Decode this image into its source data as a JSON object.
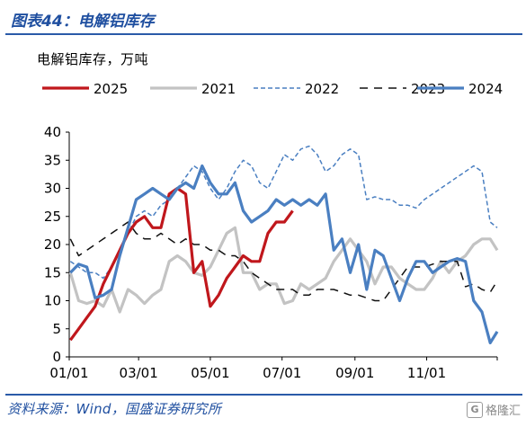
{
  "figure": {
    "title": "图表44：电解铝库存",
    "source": "资料来源：Wind，国盛证券研究所",
    "watermark": "格隆汇"
  },
  "chart_data": {
    "type": "line",
    "subtitle": "电解铝库存，万吨",
    "xlabel": "",
    "ylabel": "",
    "ylim": [
      0,
      40
    ],
    "yticks": [
      0,
      5,
      10,
      15,
      20,
      25,
      30,
      35,
      40
    ],
    "xlim": [
      "01/01",
      "12/31"
    ],
    "xticks": [
      "01/01",
      "03/01",
      "05/01",
      "07/01",
      "09/01",
      "11/01"
    ],
    "grid": false,
    "legend_position": "top",
    "series": [
      {
        "name": "2025",
        "color": "#c0171c",
        "style": "solid",
        "width": 3.2,
        "points": [
          [
            "01/02",
            3
          ],
          [
            "01/09",
            5
          ],
          [
            "01/16",
            7
          ],
          [
            "01/23",
            9
          ],
          [
            "01/30",
            13
          ],
          [
            "02/06",
            16
          ],
          [
            "02/13",
            19
          ],
          [
            "02/20",
            22
          ],
          [
            "02/27",
            24
          ],
          [
            "03/06",
            25
          ],
          [
            "03/13",
            23
          ],
          [
            "03/20",
            23
          ],
          [
            "03/27",
            29
          ],
          [
            "04/03",
            30
          ],
          [
            "04/10",
            29
          ],
          [
            "04/17",
            15
          ],
          [
            "04/24",
            17
          ],
          [
            "05/01",
            9
          ],
          [
            "05/08",
            11
          ],
          [
            "05/15",
            14
          ],
          [
            "05/22",
            16
          ],
          [
            "05/29",
            18
          ],
          [
            "06/05",
            17
          ],
          [
            "06/12",
            17
          ],
          [
            "06/19",
            22
          ],
          [
            "06/26",
            24
          ],
          [
            "07/03",
            24
          ],
          [
            "07/10",
            26
          ]
        ]
      },
      {
        "name": "2021",
        "color": "#c3c3c3",
        "style": "solid",
        "width": 3.2,
        "points": [
          [
            "01/02",
            15
          ],
          [
            "01/09",
            10
          ],
          [
            "01/16",
            9.5
          ],
          [
            "01/23",
            10
          ],
          [
            "01/30",
            9
          ],
          [
            "02/06",
            12
          ],
          [
            "02/13",
            8
          ],
          [
            "02/20",
            12
          ],
          [
            "02/27",
            11
          ],
          [
            "03/06",
            9.5
          ],
          [
            "03/13",
            11
          ],
          [
            "03/20",
            12
          ],
          [
            "03/27",
            17
          ],
          [
            "04/03",
            18
          ],
          [
            "04/10",
            17
          ],
          [
            "04/17",
            15
          ],
          [
            "04/24",
            14.5
          ],
          [
            "05/01",
            16
          ],
          [
            "05/08",
            19
          ],
          [
            "05/15",
            22
          ],
          [
            "05/22",
            23
          ],
          [
            "05/29",
            15
          ],
          [
            "06/05",
            15
          ],
          [
            "06/12",
            12
          ],
          [
            "06/19",
            13
          ],
          [
            "06/26",
            13
          ],
          [
            "07/03",
            9.5
          ],
          [
            "07/10",
            10
          ],
          [
            "07/17",
            13
          ],
          [
            "07/24",
            12
          ],
          [
            "07/31",
            13
          ],
          [
            "08/07",
            14
          ],
          [
            "08/14",
            17
          ],
          [
            "08/21",
            19
          ],
          [
            "08/28",
            21
          ],
          [
            "09/04",
            19
          ],
          [
            "09/11",
            17
          ],
          [
            "09/18",
            13
          ],
          [
            "09/25",
            16
          ],
          [
            "10/02",
            16
          ],
          [
            "10/09",
            14
          ],
          [
            "10/16",
            13
          ],
          [
            "10/23",
            12
          ],
          [
            "10/30",
            12
          ],
          [
            "11/06",
            14
          ],
          [
            "11/13",
            17
          ],
          [
            "11/20",
            15
          ],
          [
            "11/27",
            17
          ],
          [
            "12/04",
            18
          ],
          [
            "12/11",
            20
          ],
          [
            "12/18",
            21
          ],
          [
            "12/25",
            21
          ],
          [
            "12/31",
            19
          ]
        ]
      },
      {
        "name": "2022",
        "color": "#4a7fc1",
        "style": "dashed",
        "width": 1.5,
        "points": [
          [
            "01/02",
            17
          ],
          [
            "01/09",
            16
          ],
          [
            "01/16",
            15
          ],
          [
            "01/23",
            15
          ],
          [
            "01/30",
            14
          ],
          [
            "02/06",
            16
          ],
          [
            "02/13",
            19
          ],
          [
            "02/20",
            22
          ],
          [
            "02/27",
            25
          ],
          [
            "03/06",
            26
          ],
          [
            "03/13",
            25
          ],
          [
            "03/20",
            27
          ],
          [
            "03/27",
            28
          ],
          [
            "04/03",
            30
          ],
          [
            "04/10",
            32
          ],
          [
            "04/17",
            34
          ],
          [
            "04/24",
            33
          ],
          [
            "05/01",
            30
          ],
          [
            "05/08",
            28
          ],
          [
            "05/15",
            30
          ],
          [
            "05/22",
            33
          ],
          [
            "05/29",
            35
          ],
          [
            "06/05",
            34
          ],
          [
            "06/12",
            31
          ],
          [
            "06/19",
            30
          ],
          [
            "06/26",
            33
          ],
          [
            "07/03",
            36
          ],
          [
            "07/10",
            35
          ],
          [
            "07/17",
            37
          ],
          [
            "07/24",
            37.5
          ],
          [
            "07/31",
            36
          ],
          [
            "08/07",
            33
          ],
          [
            "08/14",
            34
          ],
          [
            "08/21",
            36
          ],
          [
            "08/28",
            37
          ],
          [
            "09/04",
            36
          ],
          [
            "09/11",
            28
          ],
          [
            "09/18",
            28.5
          ],
          [
            "09/25",
            28
          ],
          [
            "10/02",
            28
          ],
          [
            "10/09",
            27
          ],
          [
            "10/16",
            27
          ],
          [
            "10/23",
            26.5
          ],
          [
            "10/30",
            28
          ],
          [
            "11/06",
            29
          ],
          [
            "11/13",
            30
          ],
          [
            "11/20",
            31
          ],
          [
            "11/27",
            32
          ],
          [
            "12/04",
            33
          ],
          [
            "12/11",
            34
          ],
          [
            "12/18",
            33
          ],
          [
            "12/25",
            24
          ],
          [
            "12/31",
            23
          ]
        ]
      },
      {
        "name": "2023",
        "color": "#111111",
        "style": "longdash",
        "width": 1.5,
        "points": [
          [
            "01/02",
            21
          ],
          [
            "01/09",
            18
          ],
          [
            "01/16",
            19
          ],
          [
            "01/23",
            20
          ],
          [
            "01/30",
            21
          ],
          [
            "02/06",
            22
          ],
          [
            "02/13",
            23
          ],
          [
            "02/20",
            24
          ],
          [
            "02/27",
            22
          ],
          [
            "03/06",
            21
          ],
          [
            "03/13",
            21
          ],
          [
            "03/20",
            22
          ],
          [
            "03/27",
            21
          ],
          [
            "04/03",
            20
          ],
          [
            "04/10",
            21
          ],
          [
            "04/17",
            20
          ],
          [
            "04/24",
            20
          ],
          [
            "05/01",
            19
          ],
          [
            "05/08",
            19
          ],
          [
            "05/15",
            18
          ],
          [
            "05/22",
            18
          ],
          [
            "05/29",
            17
          ],
          [
            "06/05",
            15
          ],
          [
            "06/12",
            14
          ],
          [
            "06/19",
            13
          ],
          [
            "06/26",
            12
          ],
          [
            "07/03",
            12
          ],
          [
            "07/10",
            12
          ],
          [
            "07/17",
            11
          ],
          [
            "07/24",
            11
          ],
          [
            "07/31",
            12
          ],
          [
            "08/07",
            12
          ],
          [
            "08/14",
            12
          ],
          [
            "08/21",
            11.5
          ],
          [
            "08/28",
            11
          ],
          [
            "09/04",
            11
          ],
          [
            "09/11",
            10.5
          ],
          [
            "09/18",
            10
          ],
          [
            "09/25",
            10
          ],
          [
            "10/02",
            12
          ],
          [
            "10/09",
            14
          ],
          [
            "10/16",
            16
          ],
          [
            "10/23",
            16
          ],
          [
            "10/30",
            16
          ],
          [
            "11/06",
            16.5
          ],
          [
            "11/13",
            17
          ],
          [
            "11/20",
            17
          ],
          [
            "11/27",
            17
          ],
          [
            "12/04",
            12.5
          ],
          [
            "12/11",
            13
          ],
          [
            "12/18",
            12
          ],
          [
            "12/25",
            11.5
          ],
          [
            "12/31",
            13.5
          ]
        ]
      },
      {
        "name": "2024",
        "color": "#4a7fc1",
        "style": "solid",
        "width": 3.2,
        "points": [
          [
            "01/02",
            15
          ],
          [
            "01/09",
            16.5
          ],
          [
            "01/16",
            16
          ],
          [
            "01/23",
            10.5
          ],
          [
            "01/30",
            11
          ],
          [
            "02/06",
            12
          ],
          [
            "02/13",
            18
          ],
          [
            "02/20",
            23
          ],
          [
            "02/27",
            28
          ],
          [
            "03/06",
            29
          ],
          [
            "03/13",
            30
          ],
          [
            "03/20",
            29
          ],
          [
            "03/27",
            28
          ],
          [
            "04/03",
            30
          ],
          [
            "04/10",
            31
          ],
          [
            "04/17",
            30
          ],
          [
            "04/24",
            34
          ],
          [
            "05/01",
            31
          ],
          [
            "05/08",
            29
          ],
          [
            "05/15",
            29
          ],
          [
            "05/22",
            31
          ],
          [
            "05/29",
            26
          ],
          [
            "06/05",
            24
          ],
          [
            "06/12",
            25
          ],
          [
            "06/19",
            26
          ],
          [
            "06/26",
            28
          ],
          [
            "07/03",
            27
          ],
          [
            "07/10",
            28
          ],
          [
            "07/17",
            27
          ],
          [
            "07/24",
            28
          ],
          [
            "07/31",
            27
          ],
          [
            "08/07",
            29
          ],
          [
            "08/14",
            19
          ],
          [
            "08/21",
            21
          ],
          [
            "08/28",
            15
          ],
          [
            "09/04",
            20
          ],
          [
            "09/11",
            12
          ],
          [
            "09/18",
            19
          ],
          [
            "09/25",
            18
          ],
          [
            "10/02",
            14
          ],
          [
            "10/09",
            10
          ],
          [
            "10/16",
            14
          ],
          [
            "10/23",
            17
          ],
          [
            "10/30",
            17
          ],
          [
            "11/06",
            15
          ],
          [
            "11/13",
            16
          ],
          [
            "11/20",
            17
          ],
          [
            "11/27",
            17.5
          ],
          [
            "12/04",
            17
          ],
          [
            "12/11",
            10
          ],
          [
            "12/18",
            8
          ],
          [
            "12/25",
            2.5
          ],
          [
            "12/31",
            4.5
          ]
        ]
      }
    ]
  }
}
